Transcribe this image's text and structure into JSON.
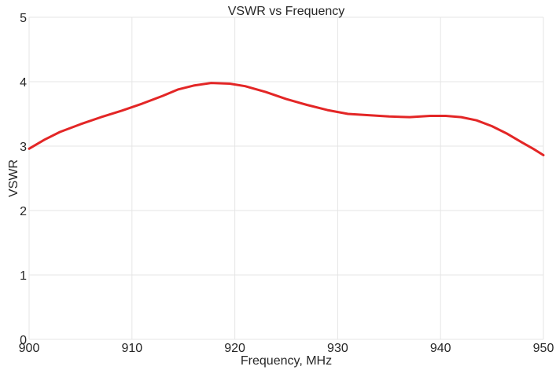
{
  "chart_data": {
    "type": "line",
    "title": "VSWR vs Frequency",
    "xlabel": "Frequency, MHz",
    "ylabel": "VSWR",
    "xlim": [
      900,
      950
    ],
    "ylim": [
      0,
      5
    ],
    "xticks": [
      900,
      910,
      920,
      930,
      940,
      950
    ],
    "yticks": [
      0,
      1,
      2,
      3,
      4,
      5
    ],
    "grid": true,
    "series": [
      {
        "color": "#e32626",
        "x": [
          900,
          901.5,
          903,
          905,
          907,
          909,
          911,
          913,
          914.5,
          916,
          917.7,
          919.5,
          921,
          923,
          925,
          927,
          929,
          931,
          933,
          935,
          937,
          939,
          940.5,
          942,
          943.5,
          945,
          946.5,
          948,
          949,
          950
        ],
        "y": [
          2.96,
          3.1,
          3.22,
          3.34,
          3.45,
          3.55,
          3.66,
          3.78,
          3.88,
          3.94,
          3.98,
          3.97,
          3.93,
          3.84,
          3.73,
          3.64,
          3.56,
          3.5,
          3.48,
          3.46,
          3.45,
          3.47,
          3.47,
          3.45,
          3.4,
          3.31,
          3.19,
          3.05,
          2.96,
          2.86
        ]
      }
    ]
  }
}
